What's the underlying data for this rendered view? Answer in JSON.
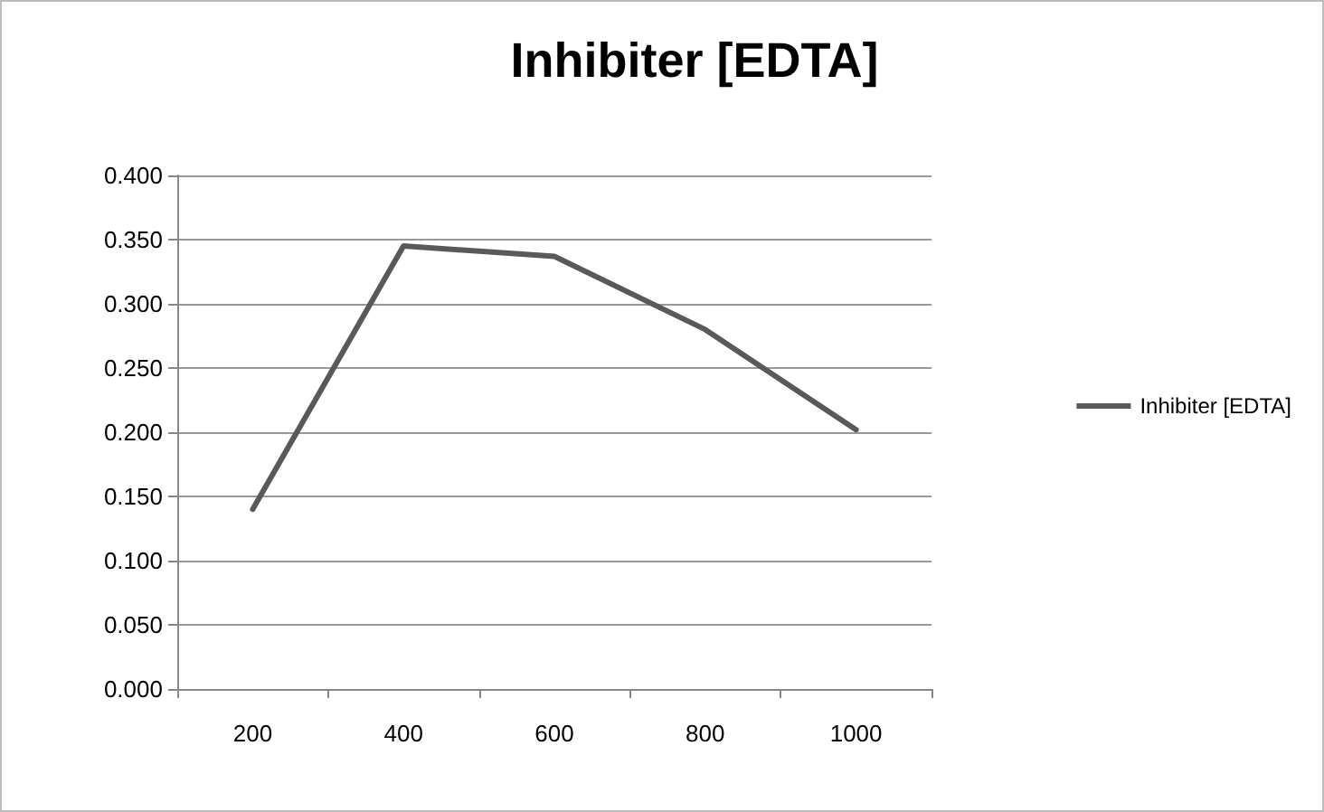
{
  "chart_data": {
    "type": "line",
    "title": "Inhibiter [EDTA]",
    "categories": [
      "200",
      "400",
      "600",
      "800",
      "1000"
    ],
    "series": [
      {
        "name": "Inhibiter [EDTA]",
        "color": "#595959",
        "values": [
          0.14,
          0.345,
          0.337,
          0.28,
          0.202
        ]
      }
    ],
    "ylim": [
      0,
      0.4
    ],
    "yticks": [
      {
        "value": 0,
        "label": "0.000"
      },
      {
        "value": 0.05,
        "label": "0.050"
      },
      {
        "value": 0.1,
        "label": "0.100"
      },
      {
        "value": 0.15,
        "label": "0.150"
      },
      {
        "value": 0.2,
        "label": "0.200"
      },
      {
        "value": 0.25,
        "label": "0.250"
      },
      {
        "value": 0.3,
        "label": "0.300"
      },
      {
        "value": 0.35,
        "label": "0.350"
      },
      {
        "value": 0.4,
        "label": "0.400"
      }
    ],
    "grid": "y",
    "legend": "right",
    "marker": "none",
    "line_style": "solid"
  }
}
